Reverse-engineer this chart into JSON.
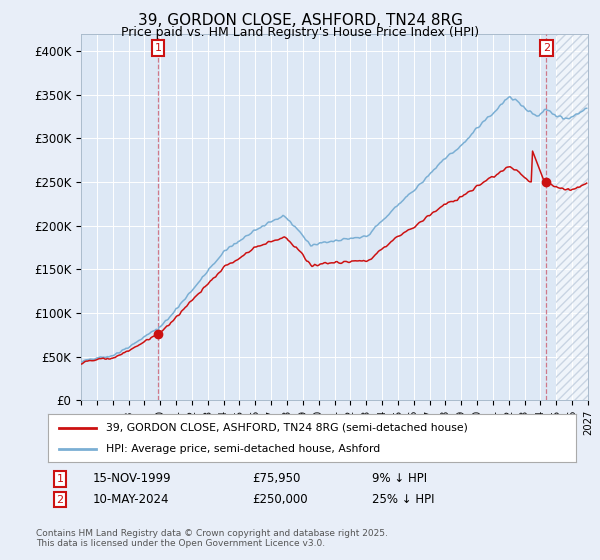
{
  "title": "39, GORDON CLOSE, ASHFORD, TN24 8RG",
  "subtitle": "Price paid vs. HM Land Registry's House Price Index (HPI)",
  "legend_line1": "39, GORDON CLOSE, ASHFORD, TN24 8RG (semi-detached house)",
  "legend_line2": "HPI: Average price, semi-detached house, Ashford",
  "annotation1_date": "15-NOV-1999",
  "annotation1_price": "£75,950",
  "annotation1_note": "9% ↓ HPI",
  "annotation2_date": "10-MAY-2024",
  "annotation2_price": "£250,000",
  "annotation2_note": "25% ↓ HPI",
  "hpi_color": "#7bafd4",
  "price_color": "#cc1111",
  "marker_color": "#cc1111",
  "background_color": "#e8eef8",
  "plot_bg_color": "#dde8f5",
  "grid_color": "#c8d4e8",
  "dashed_line_color": "#cc6677",
  "ylabel_color": "#333333",
  "sale1_year": 1999.87,
  "sale1_value_paid": 75950,
  "sale2_year": 2024.37,
  "sale2_value_paid": 250000,
  "xmin": 1995,
  "xmax": 2027,
  "ymin": 0,
  "ymax": 420000,
  "copyright": "Contains HM Land Registry data © Crown copyright and database right 2025.\nThis data is licensed under the Open Government Licence v3.0."
}
